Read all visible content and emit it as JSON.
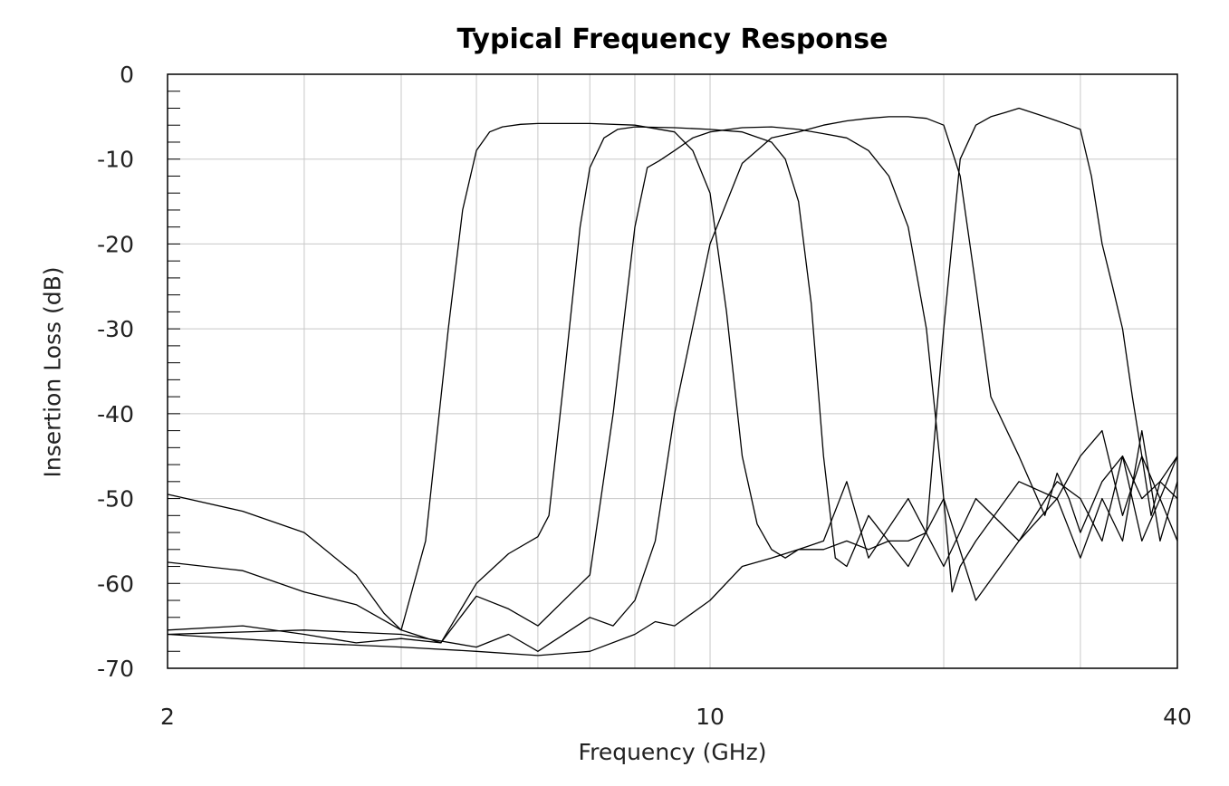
{
  "chart_data": {
    "type": "line",
    "title": "Typical Frequency Response",
    "xlabel": "Frequency (GHz)",
    "ylabel": "Insertion Loss (dB)",
    "x_scale": "log",
    "xlim": [
      2,
      40
    ],
    "ylim": [
      -70,
      0
    ],
    "x_ticks": [
      2,
      10,
      40
    ],
    "y_ticks": [
      0,
      -10,
      -20,
      -30,
      -40,
      -50,
      -60,
      -70
    ],
    "x_gridlines": [
      2,
      3,
      4,
      5,
      6,
      7,
      8,
      9,
      10,
      20,
      30,
      40
    ],
    "y_gridlines": [
      0,
      -10,
      -20,
      -30,
      -40,
      -50,
      -60,
      -70
    ],
    "grid": true,
    "series": [
      {
        "x": [
          2.0,
          2.5,
          3.0,
          3.5,
          3.8,
          4.0,
          4.3,
          4.6,
          4.8,
          5.0,
          5.2,
          5.4,
          5.7,
          6.0,
          7.0,
          8.0,
          9.0,
          9.5,
          10.0,
          10.5,
          11.0,
          11.5,
          12.0,
          12.5,
          13.0,
          14.0,
          15.0,
          16.0,
          18.0,
          20.0,
          22.0,
          25.0,
          28.0,
          30.0,
          32.0,
          34.0,
          36.0,
          38.0,
          40.0
        ],
        "y": [
          -49.5,
          -51.5,
          -54.0,
          -59.0,
          -63.5,
          -65.5,
          -55.0,
          -30.0,
          -16.0,
          -9.0,
          -6.8,
          -6.2,
          -5.9,
          -5.8,
          -5.8,
          -6.0,
          -6.8,
          -9.0,
          -14.0,
          -28.0,
          -45.0,
          -53.0,
          -56.0,
          -57.0,
          -56.0,
          -55.0,
          -48.0,
          -57.0,
          -50.0,
          -58.0,
          -50.0,
          -55.0,
          -50.0,
          -57.0,
          -50.0,
          -55.0,
          -42.0,
          -55.0,
          -48.0
        ]
      },
      {
        "x": [
          2.0,
          2.5,
          3.0,
          3.5,
          4.0,
          4.5,
          5.0,
          5.5,
          6.0,
          6.2,
          6.5,
          6.8,
          7.0,
          7.3,
          7.6,
          8.0,
          9.0,
          10.0,
          11.0,
          12.0,
          12.5,
          13.0,
          13.5,
          14.0,
          14.5,
          15.0,
          16.0,
          18.0,
          20.0,
          22.0,
          25.0,
          28.0,
          30.0,
          32.0,
          34.0,
          36.0,
          38.0,
          40.0
        ],
        "y": [
          -57.5,
          -58.5,
          -61.0,
          -62.5,
          -65.5,
          -67.0,
          -60.0,
          -56.5,
          -54.5,
          -52.0,
          -35.0,
          -18.0,
          -11.0,
          -7.5,
          -6.5,
          -6.2,
          -6.3,
          -6.5,
          -6.8,
          -8.0,
          -10.0,
          -15.0,
          -27.0,
          -45.0,
          -57.0,
          -58.0,
          -52.0,
          -58.0,
          -50.0,
          -62.0,
          -55.0,
          -48.0,
          -50.0,
          -55.0,
          -45.0,
          -55.0,
          -50.0,
          -55.0
        ]
      },
      {
        "x": [
          2.0,
          2.5,
          3.0,
          3.5,
          4.0,
          4.5,
          5.0,
          5.5,
          6.0,
          7.0,
          7.5,
          8.0,
          8.3,
          8.6,
          9.0,
          9.5,
          10.0,
          11.0,
          12.0,
          13.0,
          14.0,
          15.0,
          16.0,
          17.0,
          18.0,
          19.0,
          19.5,
          20.0,
          20.5,
          21.0,
          22.0,
          25.0,
          28.0,
          30.0,
          32.0,
          34.0,
          36.0,
          38.0,
          40.0
        ],
        "y": [
          -65.5,
          -65.0,
          -66.0,
          -67.0,
          -66.5,
          -67.0,
          -61.5,
          -63.0,
          -65.0,
          -59.0,
          -40.0,
          -18.0,
          -11.0,
          -10.2,
          -9.0,
          -7.5,
          -6.8,
          -6.3,
          -6.2,
          -6.5,
          -7.0,
          -7.5,
          -9.0,
          -12.0,
          -18.0,
          -30.0,
          -40.0,
          -50.0,
          -61.0,
          -58.0,
          -55.0,
          -48.0,
          -50.0,
          -45.0,
          -42.0,
          -52.0,
          -45.0,
          -50.0,
          -45.0
        ]
      },
      {
        "x": [
          2.0,
          3.0,
          4.0,
          5.0,
          5.5,
          6.0,
          7.0,
          7.5,
          8.0,
          8.5,
          9.0,
          10.0,
          11.0,
          12.0,
          13.0,
          14.0,
          15.0,
          16.0,
          17.0,
          18.0,
          19.0,
          20.0,
          21.0,
          22.0,
          23.0,
          25.0,
          27.0,
          28.0,
          29.0,
          30.0,
          32.0,
          34.0,
          36.0,
          38.0,
          40.0
        ],
        "y": [
          -66.0,
          -65.5,
          -66.0,
          -67.5,
          -66.0,
          -68.0,
          -64.0,
          -65.0,
          -62.0,
          -55.0,
          -40.0,
          -20.0,
          -10.5,
          -7.5,
          -6.8,
          -6.0,
          -5.5,
          -5.2,
          -5.0,
          -5.0,
          -5.2,
          -6.0,
          -12.0,
          -25.0,
          -38.0,
          -45.0,
          -52.0,
          -47.0,
          -50.0,
          -54.0,
          -48.0,
          -45.0,
          -50.0,
          -48.0,
          -50.0
        ]
      },
      {
        "x": [
          2.0,
          3.0,
          4.0,
          5.0,
          6.0,
          7.0,
          8.0,
          8.5,
          9.0,
          10.0,
          11.0,
          12.0,
          13.0,
          14.0,
          15.0,
          16.0,
          17.0,
          18.0,
          19.0,
          20.0,
          21.0,
          22.0,
          23.0,
          24.0,
          25.0,
          26.0,
          27.0,
          28.0,
          29.0,
          30.0,
          31.0,
          32.0,
          33.0,
          34.0,
          35.0,
          36.0,
          37.0,
          38.0,
          40.0
        ],
        "y": [
          -66.0,
          -67.0,
          -67.5,
          -68.0,
          -68.5,
          -68.0,
          -66.0,
          -64.5,
          -65.0,
          -62.0,
          -58.0,
          -57.0,
          -56.0,
          -56.0,
          -55.0,
          -56.0,
          -55.0,
          -55.0,
          -54.0,
          -30.0,
          -10.0,
          -6.0,
          -5.0,
          -4.5,
          -4.0,
          -4.5,
          -5.0,
          -5.5,
          -6.0,
          -6.5,
          -12.0,
          -20.0,
          -25.0,
          -30.0,
          -38.0,
          -45.0,
          -52.0,
          -48.0,
          -45.0
        ]
      }
    ]
  }
}
